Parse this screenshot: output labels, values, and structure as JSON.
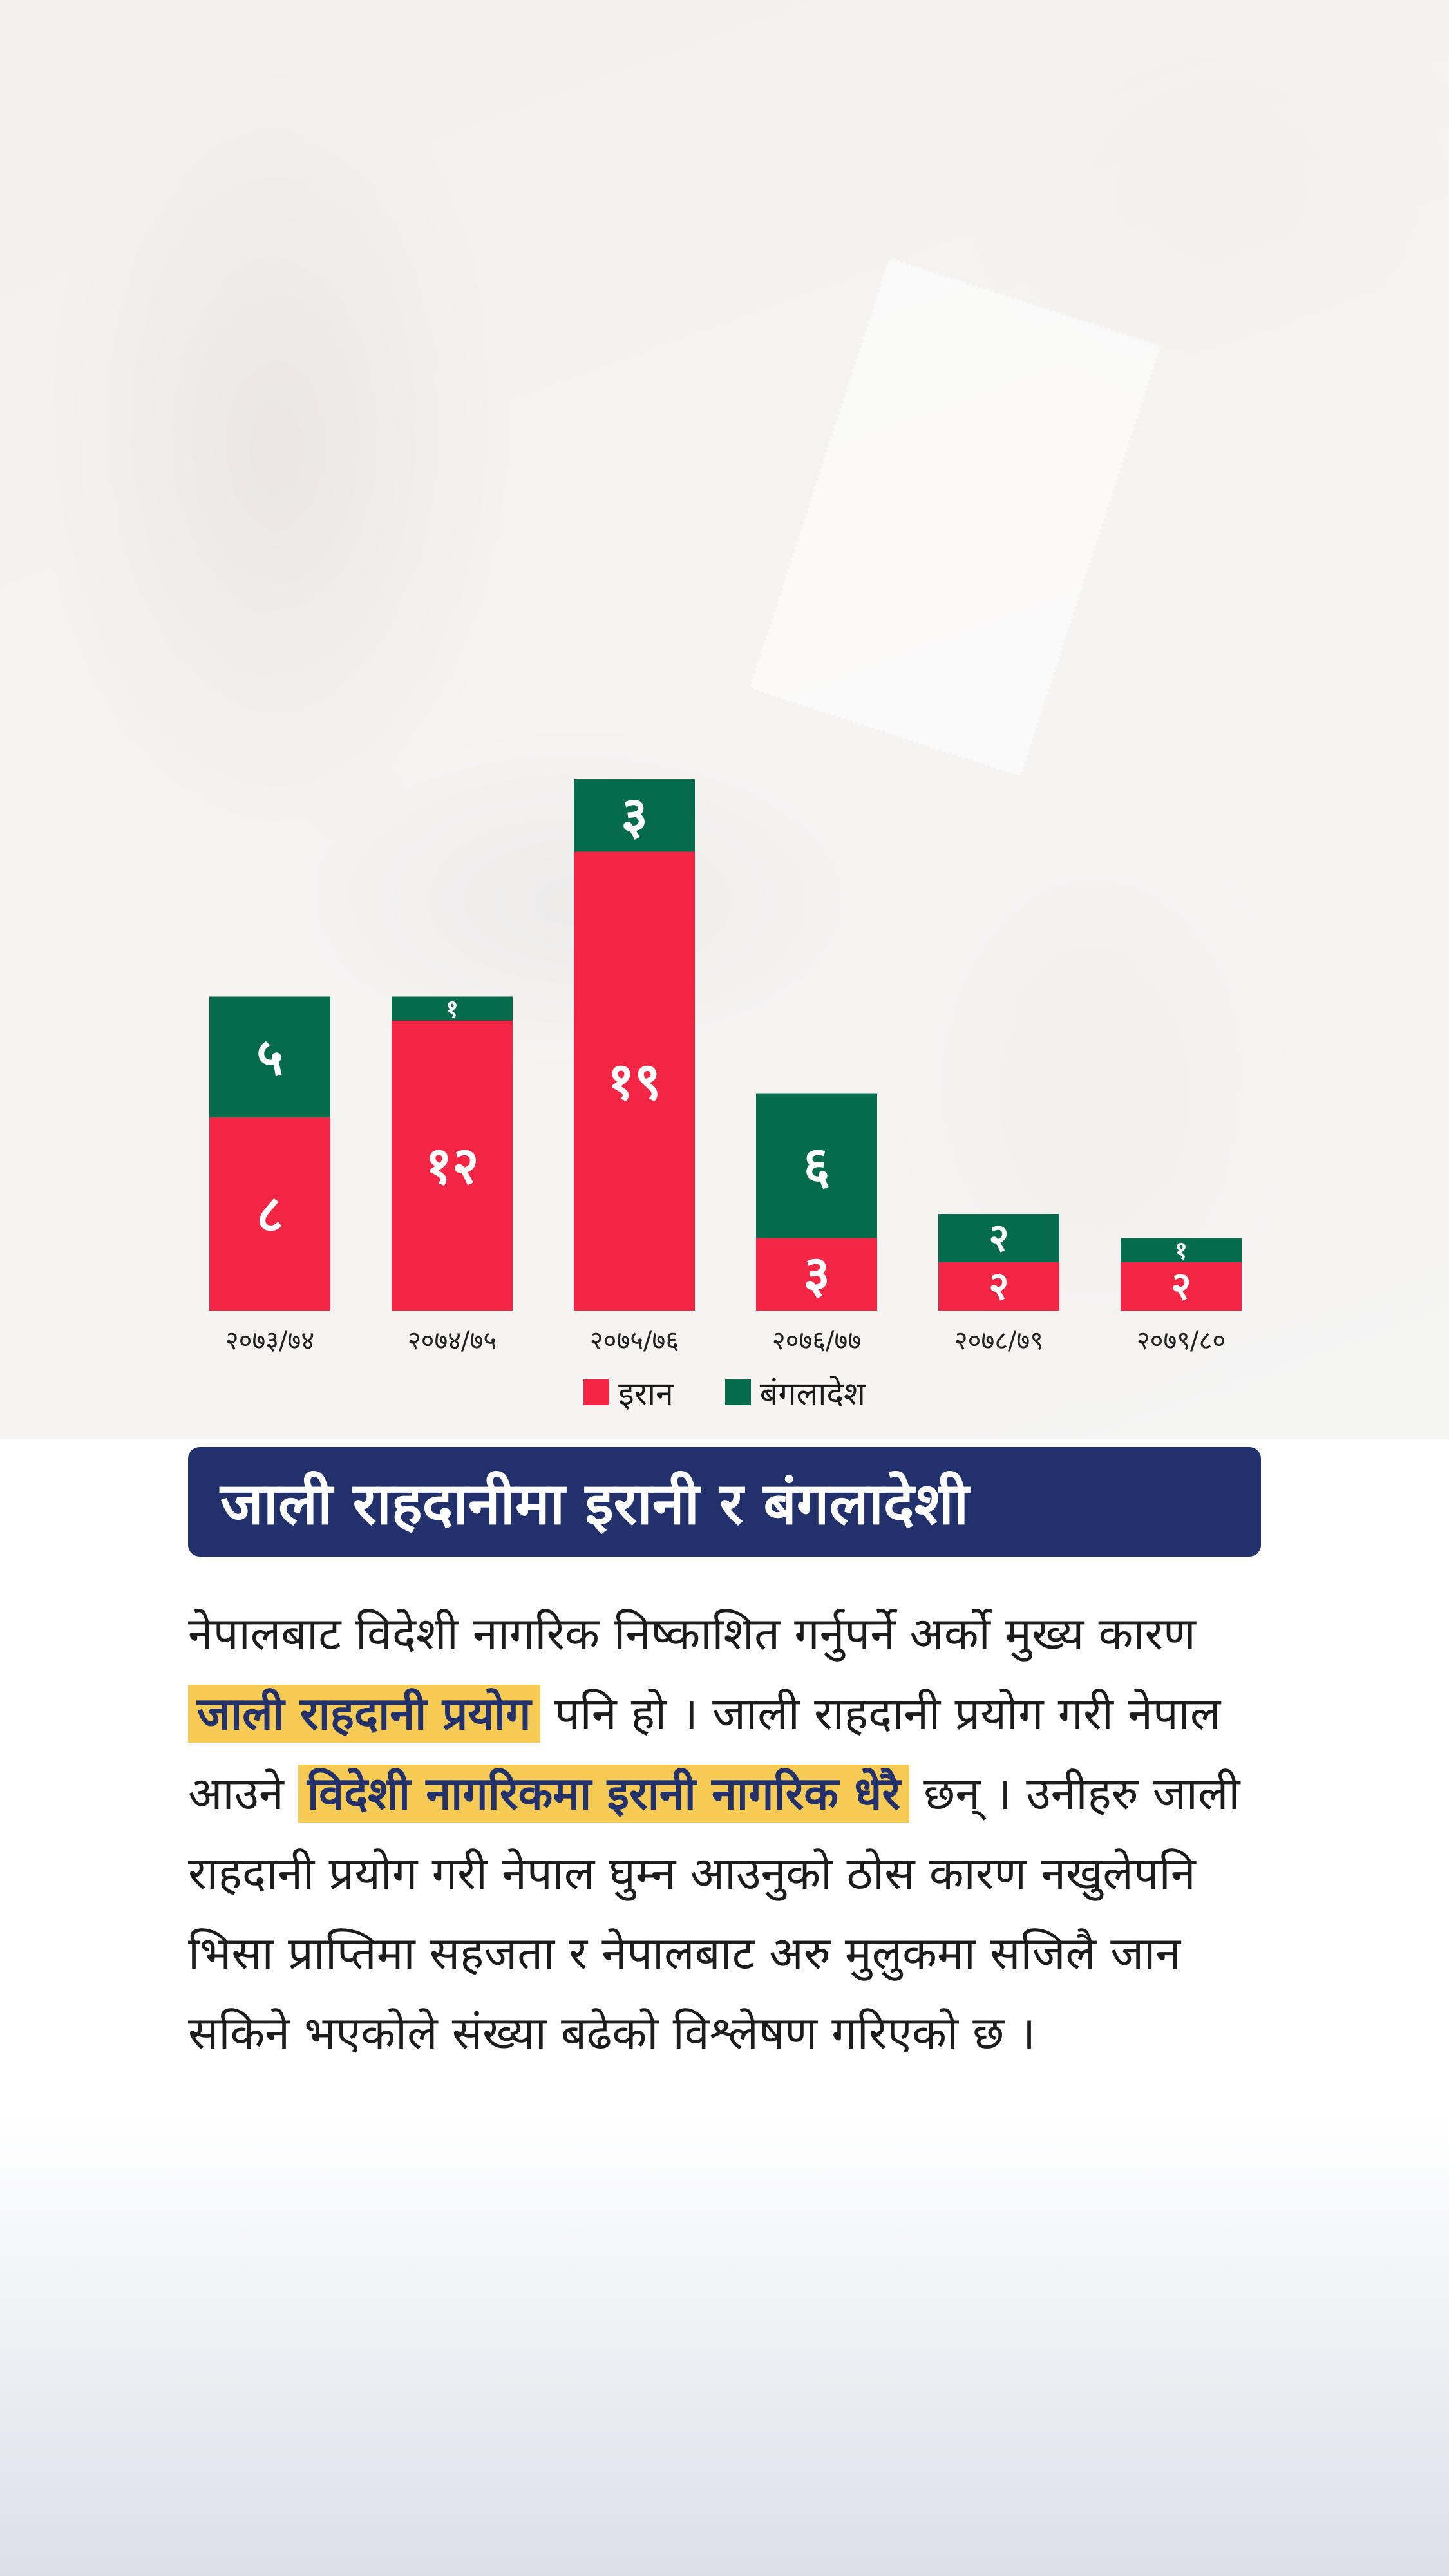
{
  "chart_data": {
    "type": "bar",
    "stacked": true,
    "categories": [
      "२०७३/७४",
      "२०७४/७५",
      "२०७५/७६",
      "२०७६/७७",
      "२०७८/७९",
      "२०७९/८०"
    ],
    "series": [
      {
        "name": "इरान",
        "values": [
          8,
          12,
          19,
          3,
          2,
          2
        ],
        "labels": [
          "८",
          "१२",
          "१९",
          "३",
          "२",
          "२"
        ],
        "color": "#f22644"
      },
      {
        "name": "बंगलादेश",
        "values": [
          5,
          1,
          3,
          6,
          2,
          1
        ],
        "labels": [
          "५",
          "१",
          "३",
          "६",
          "२",
          "१"
        ],
        "color": "#056b4a"
      }
    ],
    "legend_position": "bottom-center",
    "grid": false,
    "ylim": [
      0,
      22
    ]
  },
  "headline": "जाली राहदानीमा इरानी र बंगलादेशी",
  "article": {
    "t1": "नेपालबाट विदेशी नागरिक निष्काशित गर्नुपर्ने अर्को मुख्य कारण ",
    "h1": "जाली राहदानी प्रयोग",
    "t2": " पनि हो । जाली राहदानी प्रयोग गरी नेपाल आउने ",
    "h2": "विदेशी नागरिकमा इरानी नागरिक धेरै",
    "t3": " छन् । उनीहरु जाली राहदानी प्रयोग गरी नेपाल घुम्न आउनुको ठोस कारण नखुलेपनि भिसा प्राप्तिमा सहजता र नेपालबाट अरु मुलुकमा सजिलै जान सकिने भएकोले संख्या बढेको विश्लेषण गरिएको छ ।"
  }
}
